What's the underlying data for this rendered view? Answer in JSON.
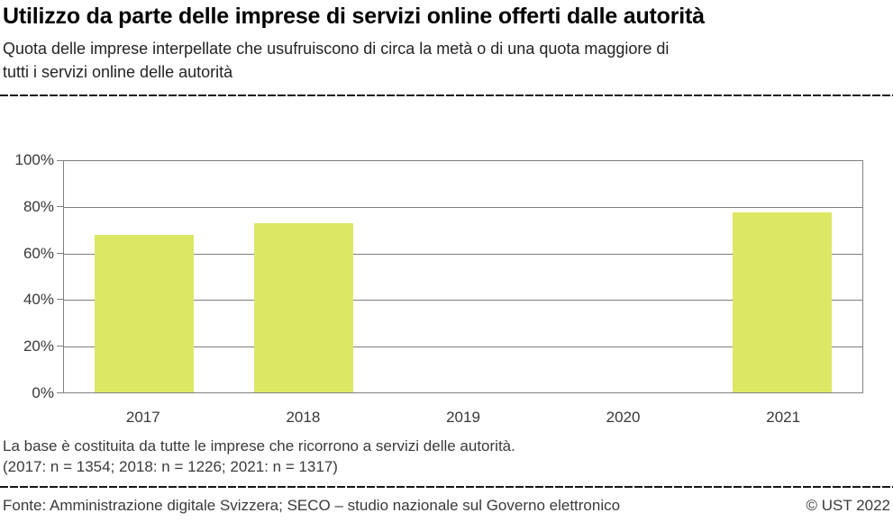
{
  "header": {
    "title": "Utilizzo da parte delle imprese di servizi online offerti dalle autorità",
    "subtitle_lines": [
      "Quota delle imprese interpellate che usufruiscono di circa la metà o di una quota maggiore di",
      "tutti i servizi online delle autorità"
    ]
  },
  "chart_data": {
    "type": "bar",
    "categories": [
      "2017",
      "2018",
      "2019",
      "2020",
      "2021"
    ],
    "values": [
      68,
      73,
      null,
      null,
      78
    ],
    "title": "",
    "xlabel": "",
    "ylabel": "",
    "ylim": [
      0,
      100
    ],
    "y_tick_step": 20,
    "y_tick_suffix": "%",
    "grid": true,
    "legend": false,
    "bar_color": "#dce864",
    "grid_color": "#7f7f7f",
    "axis_text_color": "#383838"
  },
  "footnotes": {
    "line1": "La base è costituita da tutte le imprese che ricorrono a servizi delle autorità.",
    "line2": "(2017: n = 1354; 2018: n = 1226; 2021: n = 1317)"
  },
  "footer": {
    "source": "Fonte: Amministrazione digitale Svizzera; SECO – studio nazionale sul Governo elettronico",
    "copyright": "© UST 2022"
  }
}
